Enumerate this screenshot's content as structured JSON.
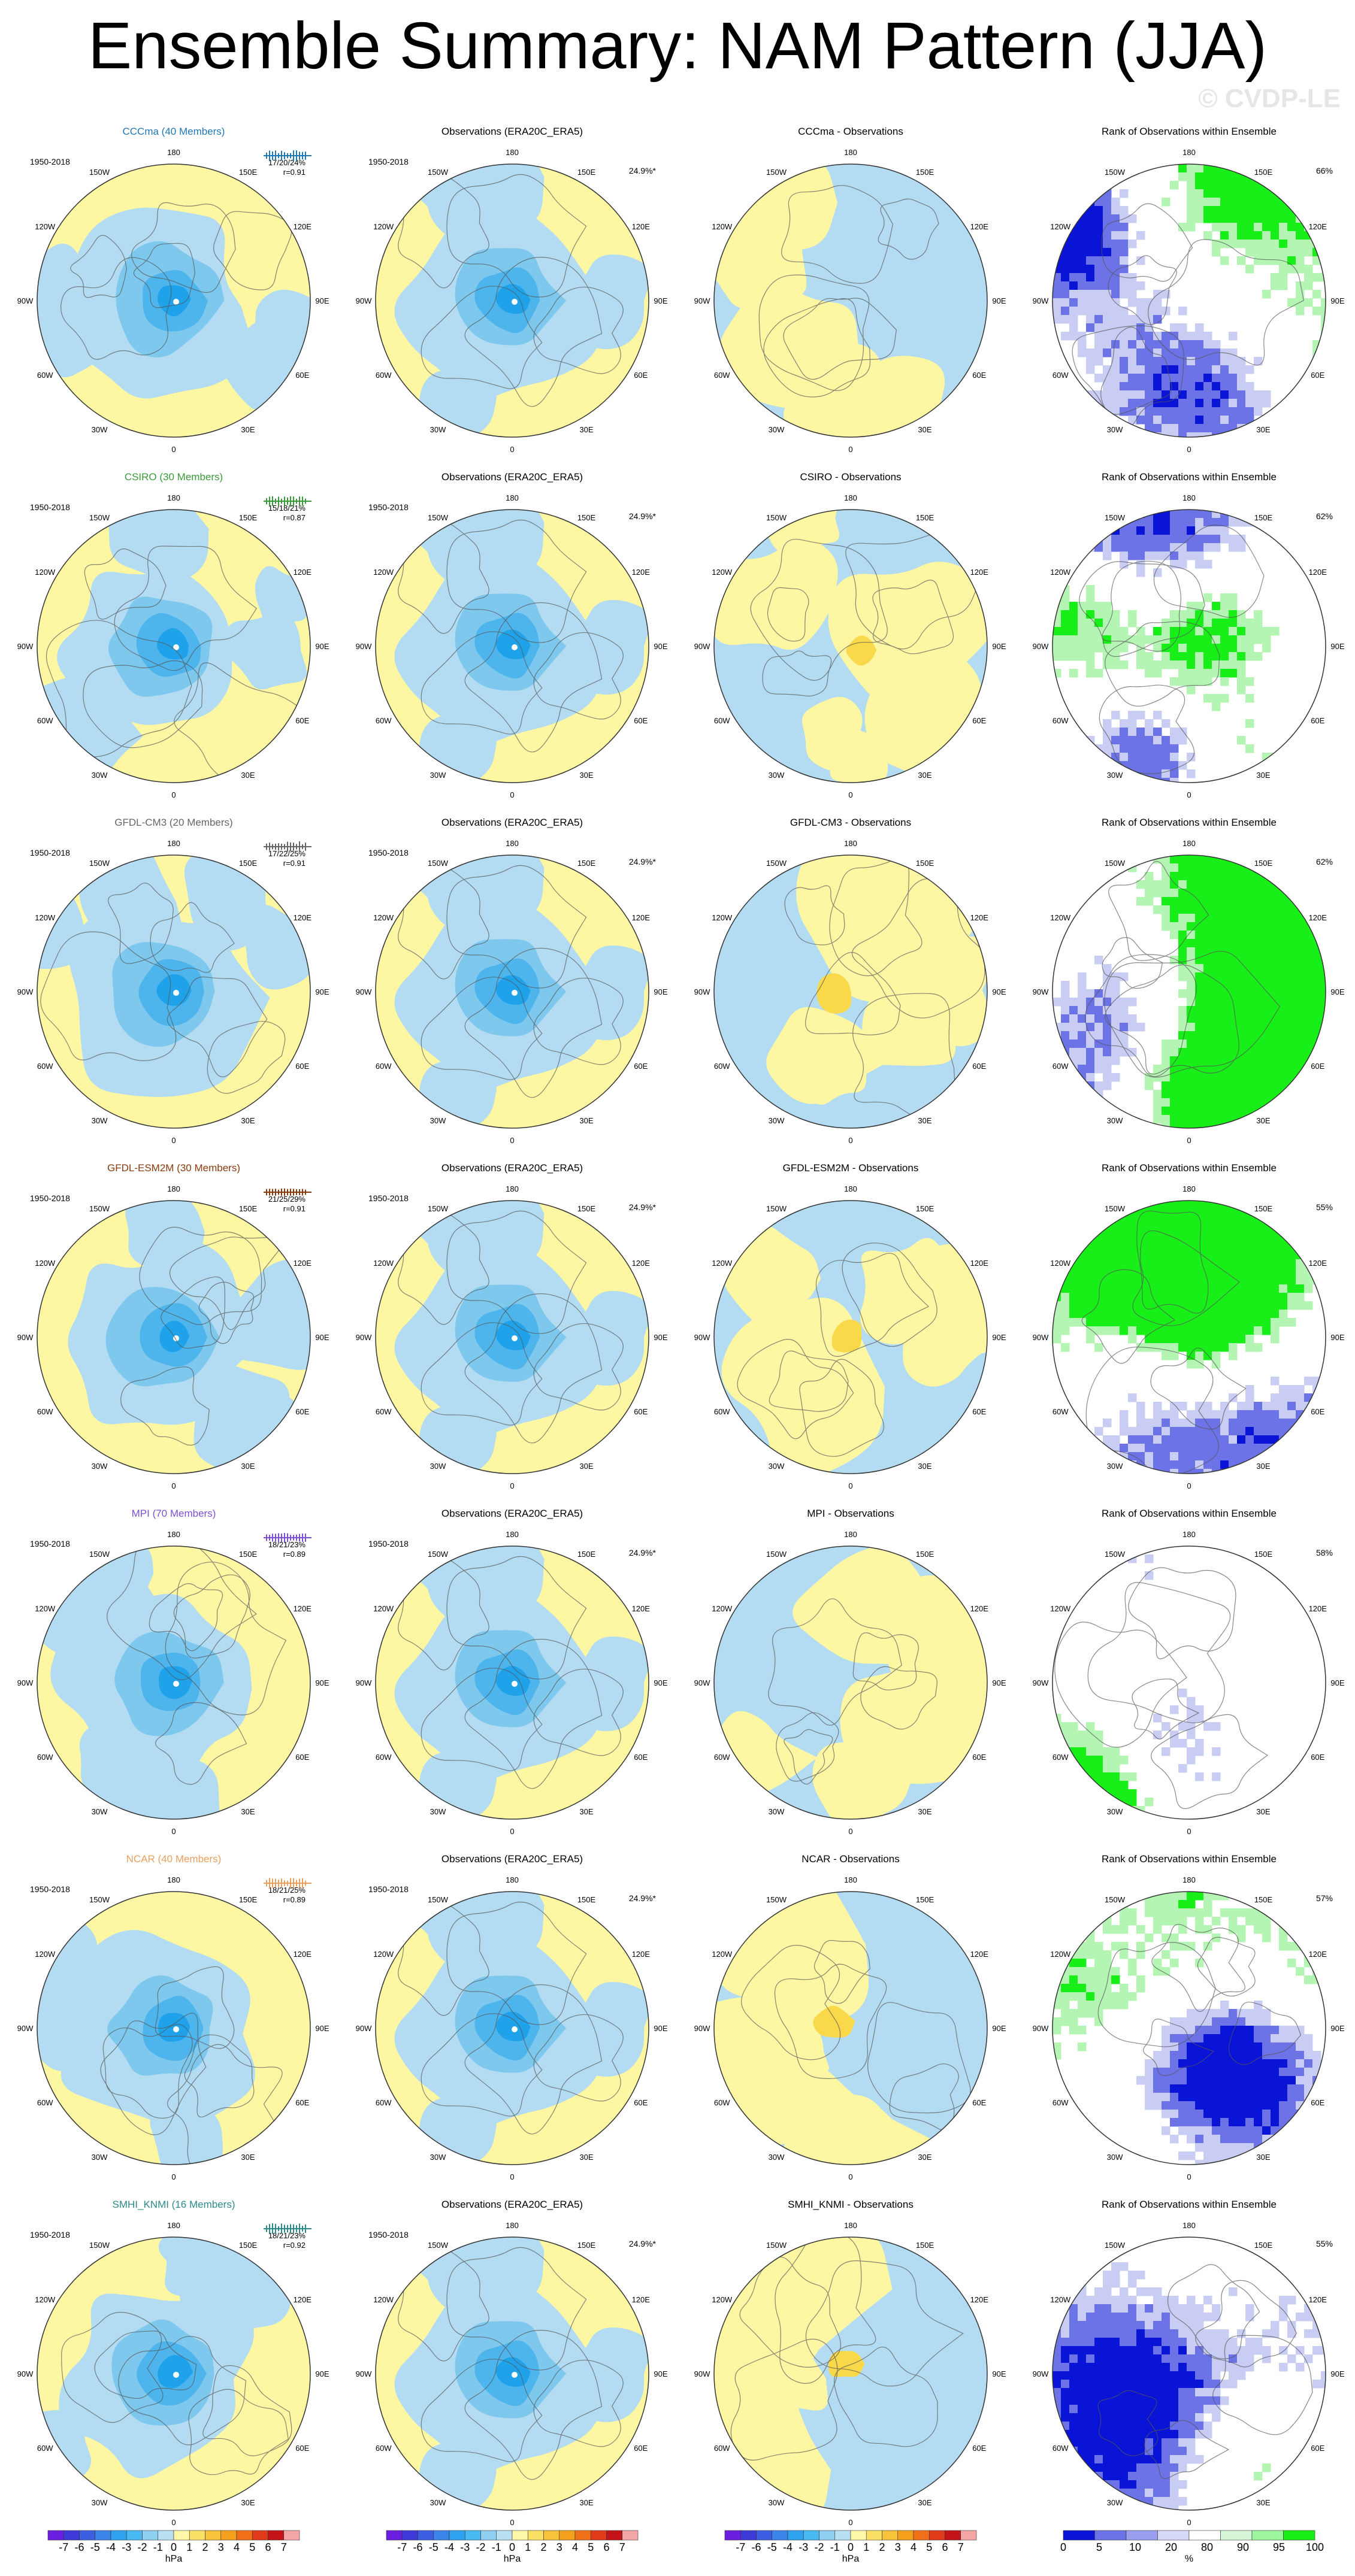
{
  "title": "Ensemble Summary: NAM Pattern (JJA)",
  "watermark": "© CVDP-LE",
  "colors": {
    "positive_fill": "#fdf6a3",
    "negative_fill": "#b3dcf2",
    "neg_2": "#7ec8ee",
    "neg_3": "#4db4ec",
    "neg_4": "#1fa2ea",
    "pos_2": "#f9d84a",
    "pos_3": "#f4b518",
    "rank_dark_blue": "#0a14d6",
    "rank_mid_blue": "#6b73e6",
    "rank_light_blue": "#c9cdf4",
    "rank_green": "#18ee18",
    "rank_light_green": "#b4f5b4"
  },
  "column_titles": {
    "obs": "Observations (ERA20C_ERA5)",
    "rank": "Rank of Observations within Ensemble"
  },
  "period_label": "1950-2018",
  "obs_pct": "24.9%*",
  "lon_labels": [
    "180",
    "150E",
    "120E",
    "90E",
    "60E",
    "30E",
    "0",
    "30W",
    "60W",
    "90W",
    "120W",
    "150W"
  ],
  "rows": [
    {
      "model": "CCCma",
      "title": "CCCma (40 Members)",
      "title_color": "#1f77b4",
      "stats": "17/20/24%",
      "r": "r=0.91",
      "diff_title": "CCCma - Observations",
      "rank_pct": "66%"
    },
    {
      "model": "CSIRO",
      "title": "CSIRO (30 Members)",
      "title_color": "#3a9a3a",
      "stats": "15/18/21%",
      "r": "r=0.87",
      "diff_title": "CSIRO - Observations",
      "rank_pct": "62%"
    },
    {
      "model": "GFDL-CM3",
      "title": "GFDL-CM3 (20 Members)",
      "title_color": "#666666",
      "stats": "17/22/25%",
      "r": "r=0.91",
      "diff_title": "GFDL-CM3 - Observations",
      "rank_pct": "62%"
    },
    {
      "model": "GFDL-ESM2M",
      "title": "GFDL-ESM2M (30 Members)",
      "title_color": "#8b3a0e",
      "stats": "21/25/29%",
      "r": "r=0.91",
      "diff_title": "GFDL-ESM2M - Observations",
      "rank_pct": "55%"
    },
    {
      "model": "MPI",
      "title": "MPI (70 Members)",
      "title_color": "#7b4fd6",
      "stats": "18/21/23%",
      "r": "r=0.89",
      "diff_title": "MPI - Observations",
      "rank_pct": "58%"
    },
    {
      "model": "NCAR",
      "title": "NCAR (40 Members)",
      "title_color": "#e8a060",
      "stats": "18/21/25%",
      "r": "r=0.89",
      "diff_title": "NCAR - Observations",
      "rank_pct": "57%"
    },
    {
      "model": "SMHI_KNMI",
      "title": "SMHI_KNMI (16 Members)",
      "title_color": "#2a8a8a",
      "stats": "18/21/23%",
      "r": "r=0.92",
      "diff_title": "SMHI_KNMI - Observations",
      "rank_pct": "55%"
    }
  ],
  "colorbars": {
    "hpa": {
      "labels": [
        "-7",
        "-6",
        "-5",
        "-4",
        "-3",
        "-2",
        "-1",
        "0",
        "1",
        "2",
        "3",
        "4",
        "5",
        "6",
        "7"
      ],
      "unit": "hPa",
      "colors": [
        "#6a1ee0",
        "#3d3ad8",
        "#3b5fe0",
        "#3c83ea",
        "#2ea2ef",
        "#49b9f3",
        "#8fd0f2",
        "#b8e0f2",
        "#fff7a8",
        "#fbe066",
        "#f8c23a",
        "#f5a01c",
        "#f0701a",
        "#e03a1a",
        "#c4141a",
        "#f4a6a6"
      ]
    },
    "rank": {
      "labels": [
        "0",
        "5",
        "10",
        "20",
        "80",
        "90",
        "95",
        "100"
      ],
      "unit": "%",
      "colors": [
        "#0a14d6",
        "#6b73e6",
        "#9aa0ee",
        "#d6d9f7",
        "#ffffff",
        "#d6f7d6",
        "#9df59d",
        "#18ee18"
      ]
    }
  }
}
